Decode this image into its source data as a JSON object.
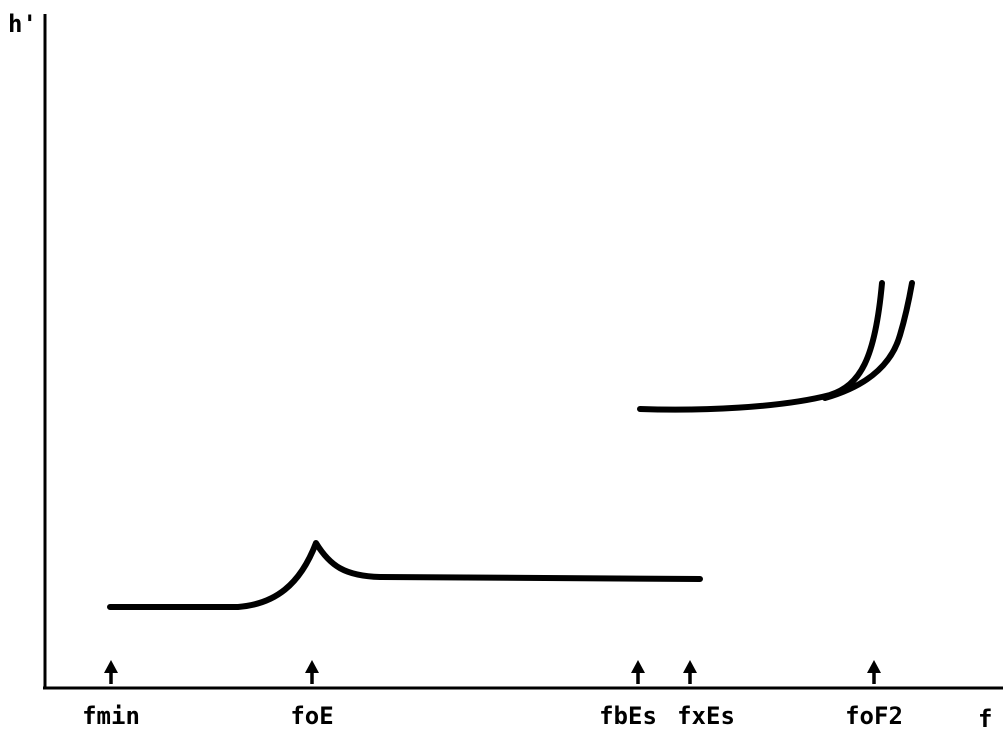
{
  "axes": {
    "y_label": "h'",
    "x_label": "f"
  },
  "markers": [
    {
      "label": "fmin"
    },
    {
      "label": "foE"
    },
    {
      "label": "fbEs"
    },
    {
      "label": "fxEs"
    },
    {
      "label": "foF2"
    }
  ]
}
